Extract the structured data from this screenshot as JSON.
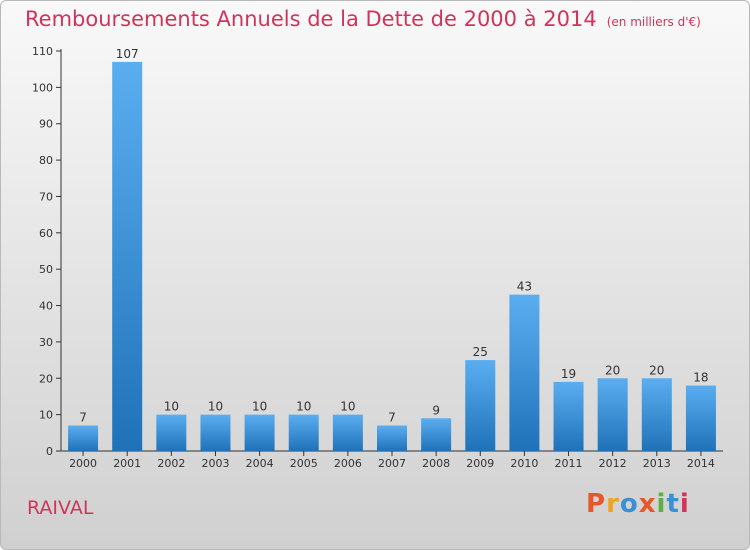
{
  "header": {
    "title": "Remboursements Annuels de la Dette de 2000 à 2014",
    "unit": "(en milliers d'€)"
  },
  "footer": {
    "commune": "RAIVAL",
    "logo": {
      "letters": [
        "P",
        "r",
        "o",
        "x",
        "i",
        "t",
        "i"
      ],
      "colors": [
        "#e8572a",
        "#f2a31b",
        "#3a8fd6",
        "#e8572a",
        "#59b33f",
        "#3a8fd6",
        "#d1345b"
      ]
    }
  },
  "colors": {
    "accent": "#d1345b",
    "bar_top": "#5aaef0",
    "bar_bottom": "#1f72b8",
    "axis": "#333333"
  },
  "chart_data": {
    "type": "bar",
    "categories": [
      "2000",
      "2001",
      "2002",
      "2003",
      "2004",
      "2005",
      "2006",
      "2007",
      "2008",
      "2009",
      "2010",
      "2011",
      "2012",
      "2013",
      "2014"
    ],
    "values": [
      7,
      107,
      10,
      10,
      10,
      10,
      10,
      7,
      9,
      25,
      43,
      19,
      20,
      20,
      18
    ],
    "ylim": [
      0,
      110
    ],
    "yticks": [
      0,
      10,
      20,
      30,
      40,
      50,
      60,
      70,
      80,
      90,
      100,
      110
    ],
    "grid": false,
    "legend": "none"
  }
}
